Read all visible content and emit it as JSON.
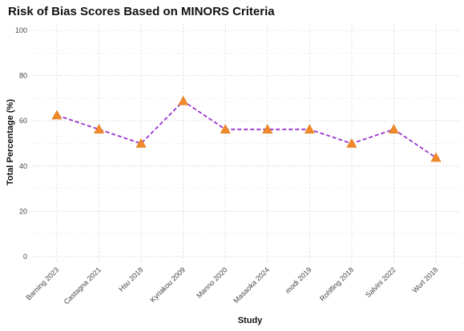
{
  "chart_data": {
    "type": "line",
    "title": "Risk of Bias Scores Based on MINORS Criteria",
    "xlabel": "Study",
    "ylabel": "Total Percentage (%)",
    "categories": [
      "Barning 2023",
      "Castagna 2021",
      "Hsu 2018",
      "Kyriakou 2009",
      "Manno 2020",
      "Masaoka 2024",
      "modi 2019",
      "Rohlfing 2018",
      "Salvini 2022",
      "Wurl 2018"
    ],
    "series": [
      {
        "values": [
          62.5,
          56.25,
          50,
          68.75,
          56.25,
          56.25,
          56.25,
          50,
          56.25,
          43.75
        ],
        "line_color": "#9a32cd",
        "line_style": "dashed",
        "marker": "triangle",
        "marker_color": "#f0892a"
      }
    ],
    "ylim": [
      0,
      100
    ],
    "yticks": [
      0,
      20,
      40,
      60,
      80,
      100
    ],
    "grid": true,
    "legend": "none"
  }
}
